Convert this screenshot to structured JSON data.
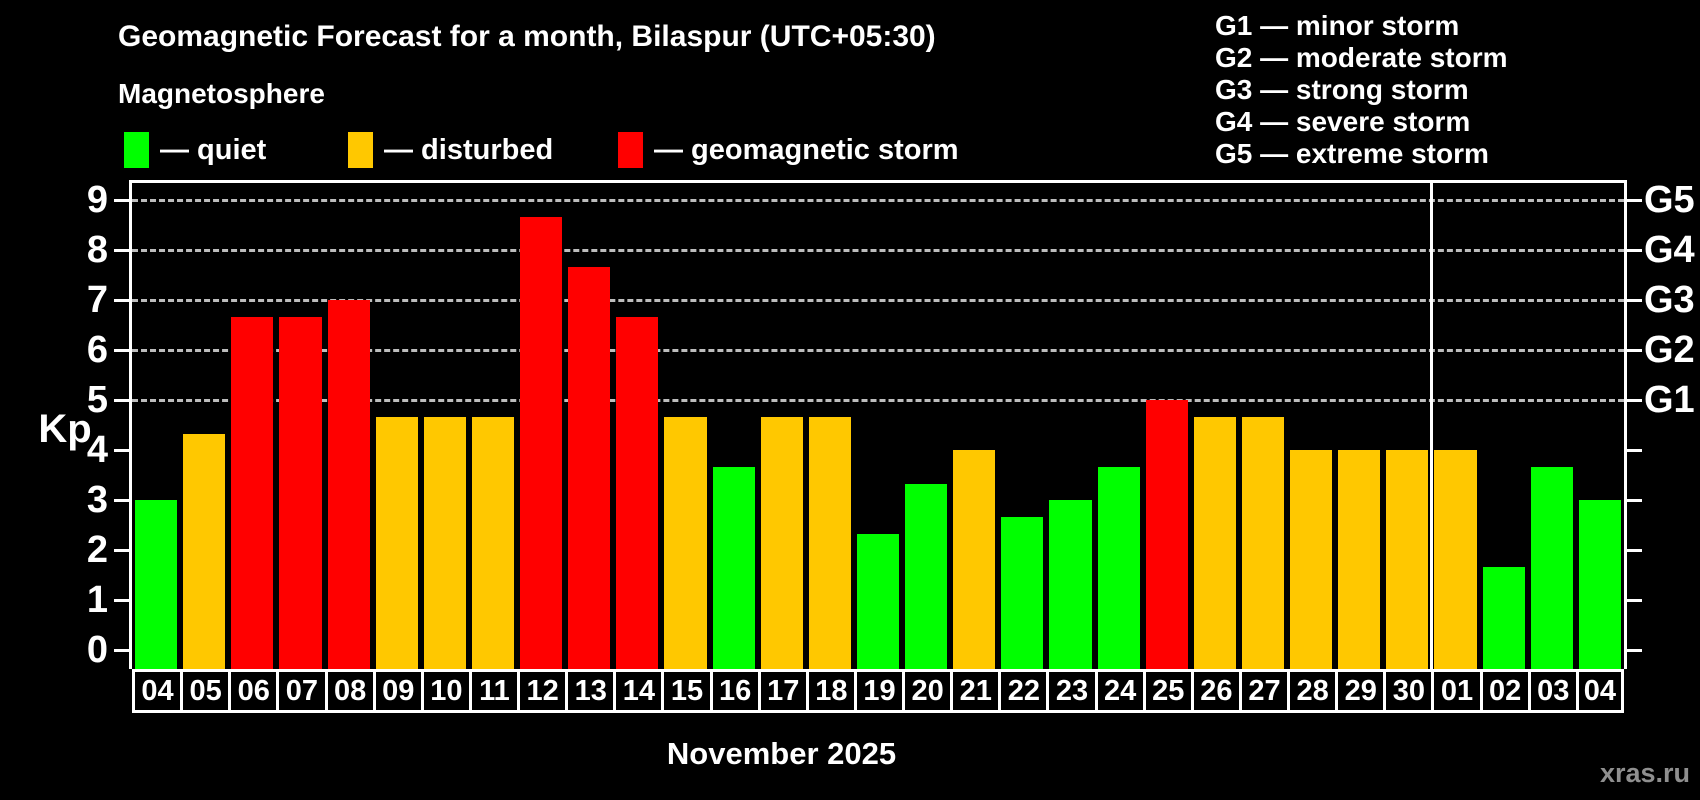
{
  "header": {
    "title": "Geomagnetic Forecast for a month, Bilaspur (UTC+05:30)",
    "subtitle": "Magnetosphere"
  },
  "legend": {
    "items": [
      {
        "status": "quiet",
        "label": "— quiet",
        "color": "#00ff00"
      },
      {
        "status": "disturbed",
        "label": "— disturbed",
        "color": "#ffc800"
      },
      {
        "status": "storm",
        "label": "— geomagnetic storm",
        "color": "#ff0000"
      }
    ]
  },
  "g_scale_legend": {
    "lines": [
      "G1 — minor storm",
      "G2 — moderate storm",
      "G3 — strong storm",
      "G4 — severe storm",
      "G5 — extreme storm"
    ]
  },
  "chart_data": {
    "type": "bar",
    "title": "Geomagnetic Forecast for a month, Bilaspur (UTC+05:30)",
    "xlabel": "November 2025",
    "ylabel": "Kp",
    "ylim": [
      -0.36,
      9.36
    ],
    "y_ticks": [
      0,
      1,
      2,
      3,
      4,
      5,
      6,
      7,
      8,
      9
    ],
    "grid_levels": [
      5,
      6,
      7,
      8,
      9
    ],
    "grid_on": true,
    "right_axis": [
      {
        "label": "G1",
        "kp": 5
      },
      {
        "label": "G2",
        "kp": 6
      },
      {
        "label": "G3",
        "kp": 7
      },
      {
        "label": "G4",
        "kp": 8
      },
      {
        "label": "G5",
        "kp": 9
      }
    ],
    "categories": [
      "04",
      "05",
      "06",
      "07",
      "08",
      "09",
      "10",
      "11",
      "12",
      "13",
      "14",
      "15",
      "16",
      "17",
      "18",
      "19",
      "20",
      "21",
      "22",
      "23",
      "24",
      "25",
      "26",
      "27",
      "28",
      "29",
      "30",
      "01",
      "02",
      "03",
      "04"
    ],
    "values": [
      3.0,
      4.33,
      6.67,
      6.67,
      7.0,
      4.67,
      4.67,
      4.67,
      8.67,
      7.67,
      6.67,
      4.67,
      3.67,
      4.67,
      4.67,
      2.33,
      3.33,
      4.0,
      2.67,
      3.0,
      3.67,
      5.0,
      4.67,
      4.67,
      4.0,
      4.0,
      4.0,
      4.0,
      1.67,
      3.67,
      3.0
    ],
    "statuses": [
      "quiet",
      "disturbed",
      "storm",
      "storm",
      "storm",
      "disturbed",
      "disturbed",
      "disturbed",
      "storm",
      "storm",
      "storm",
      "disturbed",
      "quiet",
      "disturbed",
      "disturbed",
      "quiet",
      "quiet",
      "disturbed",
      "quiet",
      "quiet",
      "quiet",
      "storm",
      "disturbed",
      "disturbed",
      "disturbed",
      "disturbed",
      "disturbed",
      "disturbed",
      "quiet",
      "quiet",
      "quiet"
    ],
    "colors": {
      "quiet": "#00ff00",
      "disturbed": "#ffc800",
      "storm": "#ff0000"
    },
    "month_separator_after_index": 26,
    "legend_position": "top"
  },
  "footer": {
    "month_label": "November 2025",
    "watermark": "xras.ru"
  }
}
